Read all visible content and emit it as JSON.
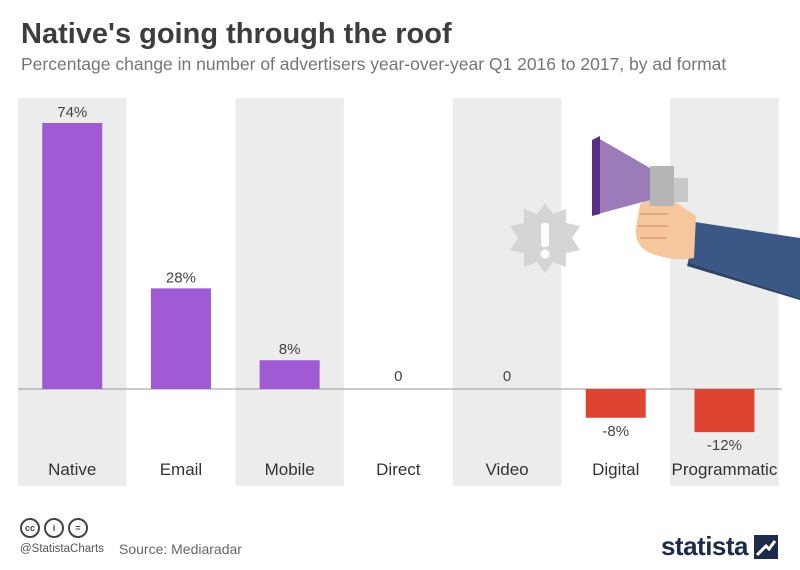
{
  "header": {
    "title": "Native's going through the roof",
    "subtitle": "Percentage change in number of advertisers year-over-year Q1 2016 to 2017, by ad format"
  },
  "chart_data": {
    "type": "bar",
    "categories": [
      "Native",
      "Email",
      "Mobile",
      "Direct",
      "Video",
      "Digital",
      "Programmatic"
    ],
    "values": [
      74,
      28,
      8,
      0,
      0,
      -8,
      -12
    ],
    "value_labels": [
      "74%",
      "28%",
      "8%",
      "0",
      "0",
      "-8%",
      "-12%"
    ],
    "ylim": [
      -20,
      80
    ],
    "colors": {
      "positive": "#a05bd4",
      "negative": "#de4431",
      "band": "#ececec",
      "zero_line": "#9a9a9a"
    },
    "grid": false,
    "legend": "none"
  },
  "illustration": {
    "megaphone_icon": "megaphone-icon",
    "alert_icon": "exclamation-burst-icon"
  },
  "footer": {
    "license_icons": [
      "cc-icon",
      "by-icon",
      "nd-icon"
    ],
    "license_glyphs": [
      "cc",
      "i",
      "="
    ],
    "handle": "@StatistaCharts",
    "source": "Source: Mediaradar",
    "brand": "statista"
  }
}
